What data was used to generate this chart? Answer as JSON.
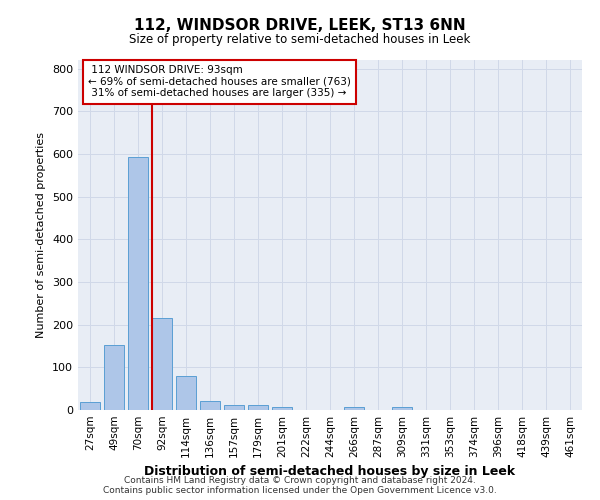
{
  "title": "112, WINDSOR DRIVE, LEEK, ST13 6NN",
  "subtitle": "Size of property relative to semi-detached houses in Leek",
  "xlabel": "Distribution of semi-detached houses by size in Leek",
  "ylabel": "Number of semi-detached properties",
  "categories": [
    "27sqm",
    "49sqm",
    "70sqm",
    "92sqm",
    "114sqm",
    "136sqm",
    "157sqm",
    "179sqm",
    "201sqm",
    "222sqm",
    "244sqm",
    "266sqm",
    "287sqm",
    "309sqm",
    "331sqm",
    "353sqm",
    "374sqm",
    "396sqm",
    "418sqm",
    "439sqm",
    "461sqm"
  ],
  "values": [
    18,
    153,
    593,
    215,
    80,
    20,
    11,
    11,
    8,
    0,
    0,
    8,
    0,
    8,
    0,
    0,
    0,
    0,
    0,
    0,
    0
  ],
  "bar_color": "#aec6e8",
  "bar_edge_color": "#5a9fd4",
  "property_label": "112 WINDSOR DRIVE: 93sqm",
  "smaller_pct": 69,
  "smaller_count": 763,
  "larger_pct": 31,
  "larger_count": 335,
  "annotation_box_color": "#cc0000",
  "property_line_color": "#cc0000",
  "ylim": [
    0,
    820
  ],
  "yticks": [
    0,
    100,
    200,
    300,
    400,
    500,
    600,
    700,
    800
  ],
  "grid_color": "#d0d8e8",
  "bg_color": "#e8edf5",
  "footer_line1": "Contains HM Land Registry data © Crown copyright and database right 2024.",
  "footer_line2": "Contains public sector information licensed under the Open Government Licence v3.0."
}
